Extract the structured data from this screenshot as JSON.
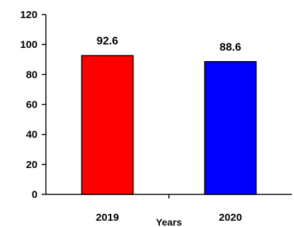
{
  "chart_data": {
    "type": "bar",
    "title": "",
    "xlabel": "Years",
    "ylabel": "",
    "categories": [
      "2019",
      "2020"
    ],
    "values": [
      92.6,
      88.6
    ],
    "data_labels": [
      "92.6",
      "88.6"
    ],
    "bar_colors": [
      "#ff0000",
      "#0000ff"
    ],
    "ylim": [
      0,
      120
    ],
    "yticks": [
      0,
      20,
      40,
      60,
      80,
      100,
      120
    ],
    "grid": false,
    "legend": "none"
  }
}
